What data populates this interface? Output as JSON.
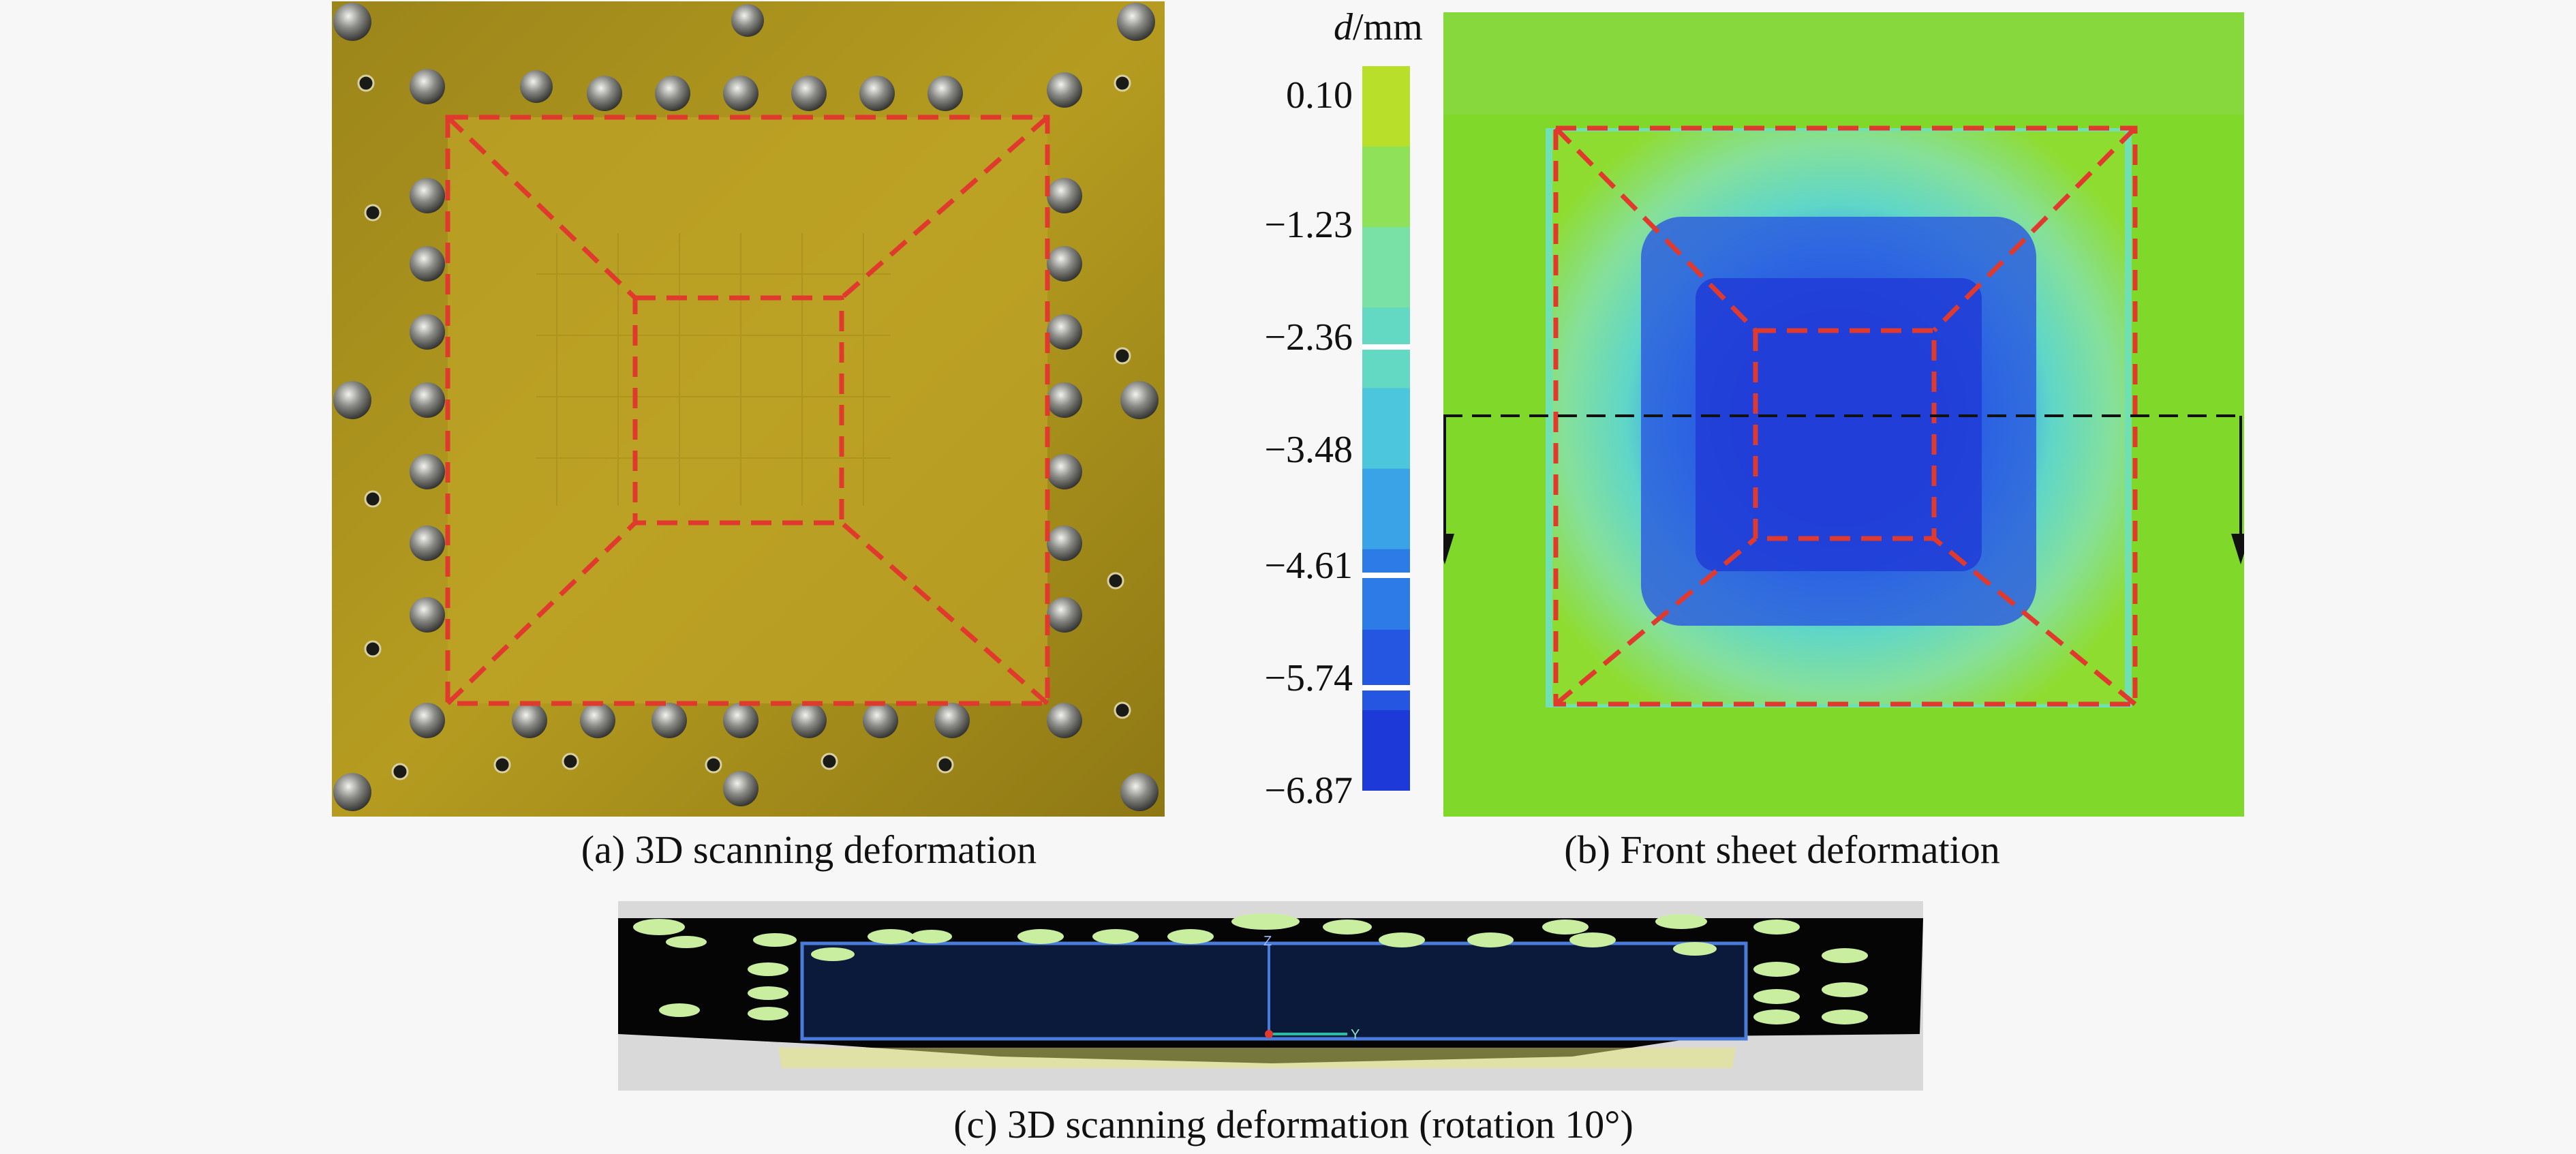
{
  "panels": {
    "a": {
      "caption": "(a) 3D scanning deformation"
    },
    "b": {
      "caption": "(b) Front sheet deformation"
    },
    "c": {
      "caption": "(c) 3D scanning deformation (rotation 10°)"
    }
  },
  "colorbar": {
    "symbol": "d",
    "unit": "/mm",
    "ticks": [
      "0.10",
      "−1.23",
      "−2.36",
      "−3.48",
      "−4.61",
      "−5.74",
      "−6.87"
    ],
    "colors": [
      "#b8e02a",
      "#8fe15a",
      "#79e0a6",
      "#63d8c2",
      "#4cc6dd",
      "#3aa2e6",
      "#2c7be6",
      "#2456e2",
      "#1d3ad8"
    ]
  },
  "colors": {
    "plate": "#b49a1c",
    "plate_inner": "#bba024",
    "dashed_outline": "#e03a2e",
    "contour_outer": "#7ddc25",
    "contour_inner": "#2448e0"
  },
  "axis_labels": {
    "z": "Z",
    "y": "Y"
  }
}
